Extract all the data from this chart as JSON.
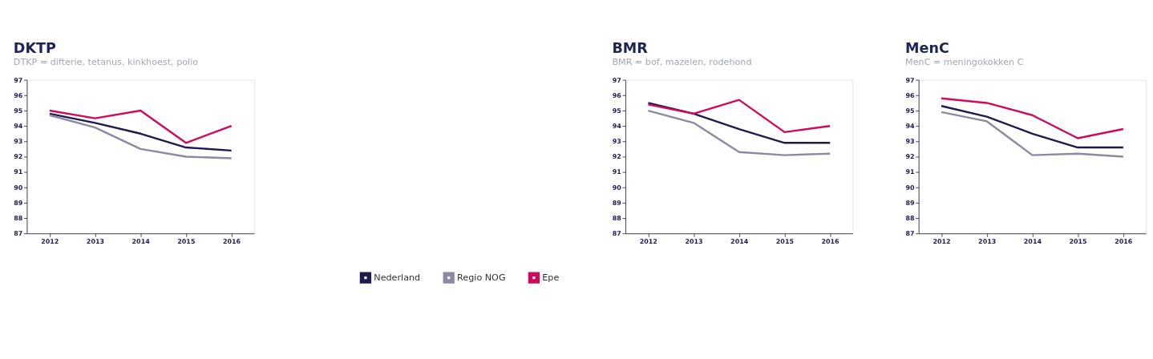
{
  "chart_data": [
    {
      "type": "line",
      "title": "DKTP",
      "subtitle": "DTKP = difterie, tetanus, kinkhoest, polio",
      "categories": [
        "2012",
        "2013",
        "2014",
        "2015",
        "2016"
      ],
      "ylim": [
        87,
        97
      ],
      "yticks": [
        87,
        88,
        89,
        90,
        91,
        92,
        93,
        94,
        95,
        96,
        97
      ],
      "grid": false,
      "legend": "bottom",
      "marker": "none",
      "line_style": "solid",
      "series": [
        {
          "name": "Nederland",
          "color": "#1e1a4f",
          "values": [
            94.8,
            94.2,
            93.5,
            92.6,
            92.4
          ]
        },
        {
          "name": "Regio NOG",
          "color": "#8a8aa0",
          "values": [
            94.7,
            93.9,
            92.5,
            92.0,
            91.9
          ]
        },
        {
          "name": "Epe",
          "color": "#d4085a",
          "values": [
            95.0,
            94.5,
            95.0,
            92.9,
            94.0
          ]
        }
      ]
    },
    {
      "type": "line",
      "title": "BMR",
      "subtitle": "BMR = bof, mazelen, rodehond",
      "categories": [
        "2012",
        "2013",
        "2014",
        "2015",
        "2016"
      ],
      "ylim": [
        87,
        97
      ],
      "yticks": [
        87,
        88,
        89,
        90,
        91,
        92,
        93,
        94,
        95,
        96,
        97
      ],
      "grid": false,
      "marker": "none",
      "line_style": "solid",
      "series": [
        {
          "color": "#1e1a4f",
          "values": [
            95.5,
            94.8,
            93.8,
            92.9,
            92.9
          ]
        },
        {
          "color": "#8a8aa0",
          "values": [
            95.0,
            94.2,
            92.3,
            92.1,
            92.2
          ]
        },
        {
          "color": "#d4085a",
          "values": [
            95.4,
            94.8,
            95.7,
            93.6,
            94.0
          ]
        }
      ]
    },
    {
      "type": "line",
      "title": "MenC",
      "subtitle": "MenC = meningokokken C",
      "categories": [
        "2012",
        "2013",
        "2014",
        "2015",
        "2016"
      ],
      "ylim": [
        87,
        97
      ],
      "yticks": [
        87,
        88,
        89,
        90,
        91,
        92,
        93,
        94,
        95,
        96,
        97
      ],
      "grid": false,
      "marker": "none",
      "line_style": "solid",
      "series": [
        {
          "color": "#1e1a4f",
          "values": [
            95.3,
            94.6,
            93.5,
            92.6,
            92.6
          ]
        },
        {
          "color": "#8a8aa0",
          "values": [
            94.9,
            94.3,
            92.1,
            92.2,
            92.0
          ]
        },
        {
          "color": "#d4085a",
          "values": [
            95.8,
            95.5,
            94.7,
            93.2,
            93.8
          ]
        }
      ]
    }
  ]
}
